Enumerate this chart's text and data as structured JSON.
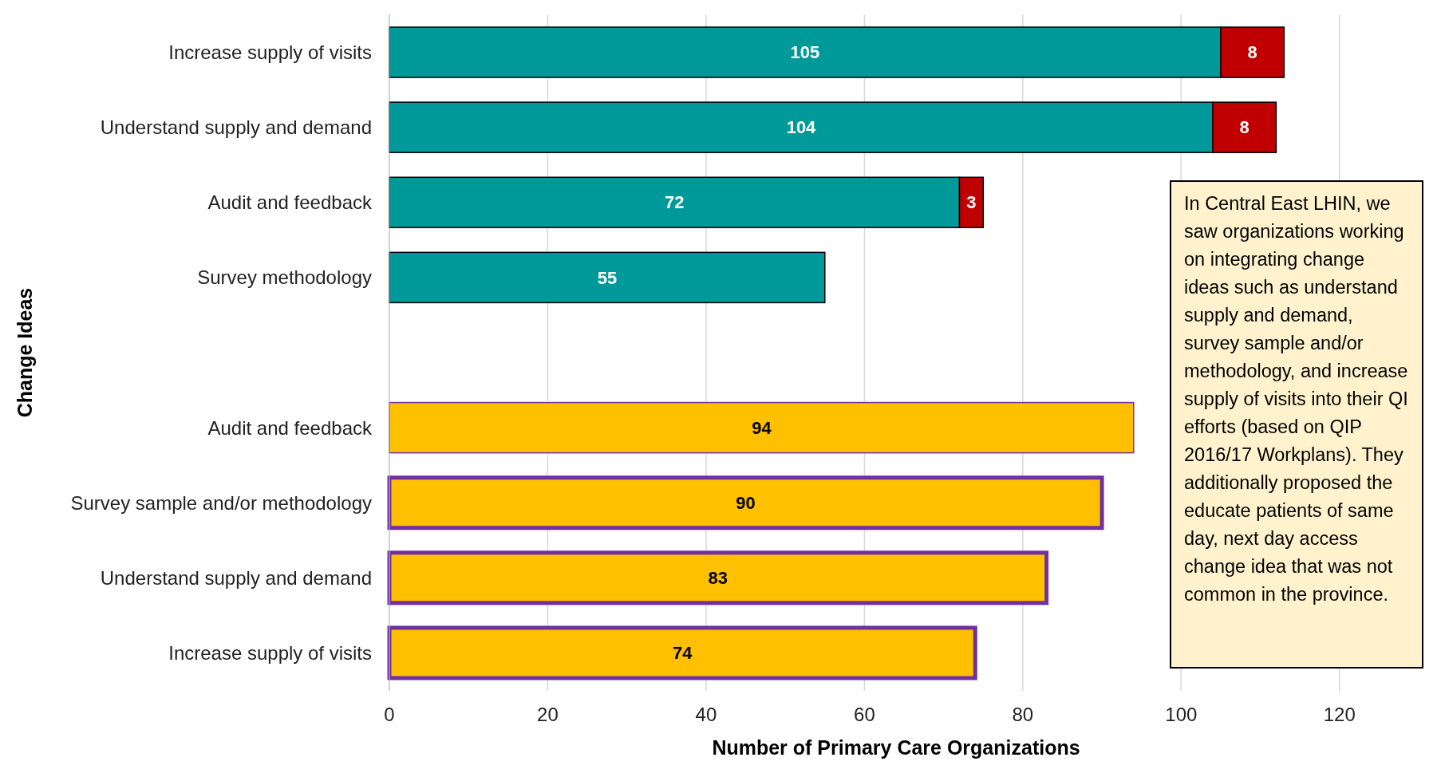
{
  "chart_data": {
    "type": "bar",
    "orientation": "horizontal",
    "stacked": true,
    "data_labels": true,
    "grid": "x",
    "xlabel": "Number of Primary Care Organizations",
    "ylabel": "Change Ideas",
    "categories": [
      "Increase supply of visits",
      "Understand supply and demand",
      "Audit and feedback",
      "Survey methodology",
      null,
      "Audit and feedback",
      "Survey sample and/or methodology",
      "Understand supply and demand",
      "Increase supply of visits"
    ],
    "series": [
      {
        "color": "#009999",
        "values": [
          105,
          104,
          72,
          55,
          null,
          null,
          null,
          null,
          null
        ]
      },
      {
        "color": "#c00000",
        "values": [
          8,
          8,
          3,
          null,
          null,
          null,
          null,
          null,
          null
        ]
      },
      {
        "color": "#ffc000",
        "values": [
          null,
          null,
          null,
          null,
          null,
          94,
          90,
          83,
          74
        ]
      }
    ],
    "xlim": [
      0,
      130
    ],
    "xticks": [
      0,
      20,
      40,
      60,
      80,
      100,
      120
    ],
    "annotations": [
      "In Central East LHIN, we saw organizations working on integrating change ideas such as understand supply and demand, survey sample and/or methodology, and increase supply of visits into their QI efforts (based on QIP 2016/17 Workplans). They additionally proposed the educate patients of same day, next day access change idea that was not common in the province."
    ]
  }
}
